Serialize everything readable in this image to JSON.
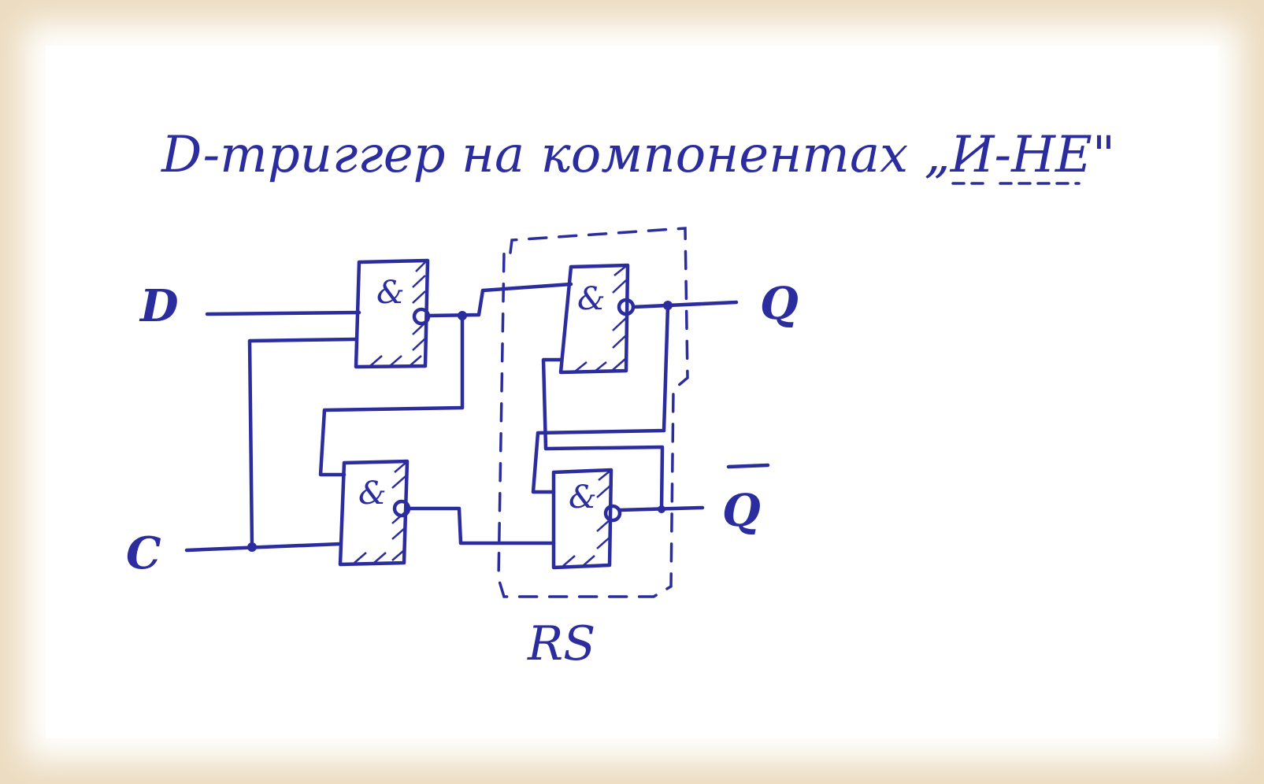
{
  "title": "D-триггер на компонентах „И-НЕ\"",
  "inputs": {
    "d": "D",
    "c": "C"
  },
  "outputs": {
    "q": "Q",
    "q_bar": "Q"
  },
  "gate_symbol": "&",
  "group_label": "RS",
  "colors": {
    "ink": "#2b2d9e",
    "paper": "#ffffff",
    "frame": "#ecdcc0"
  }
}
